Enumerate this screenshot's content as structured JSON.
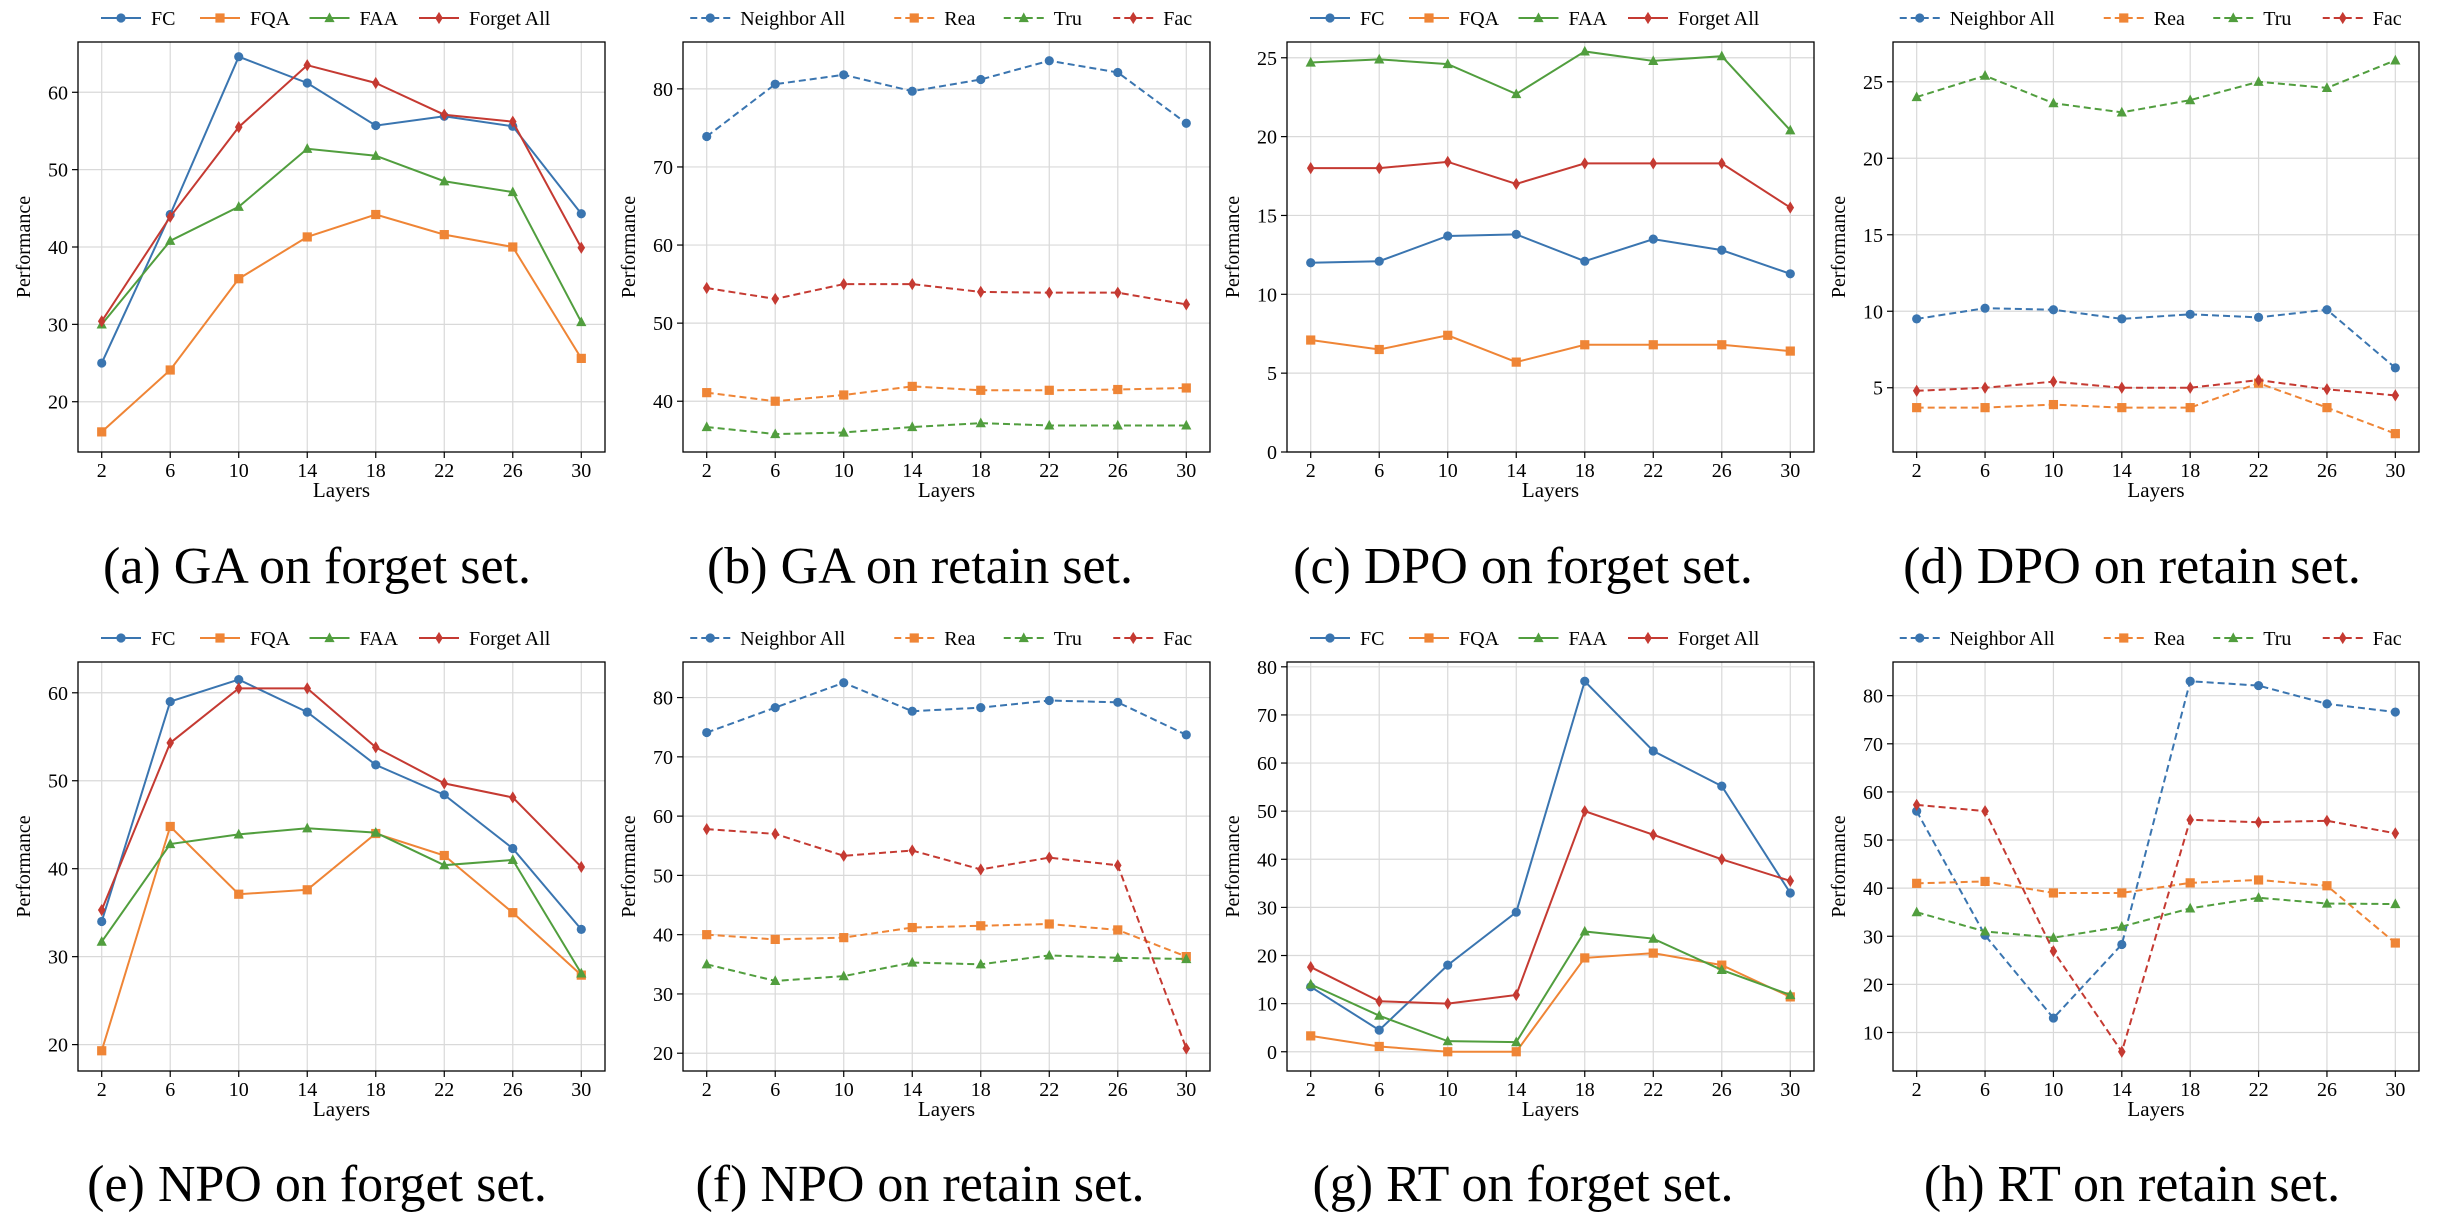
{
  "colors": {
    "blue": "#3a75b0",
    "orange": "#ef8536",
    "green": "#519e3e",
    "red": "#c53a32"
  },
  "chart_data": [
    {
      "type": "line",
      "caption": "(a) GA on forget set.",
      "xlabel": "Layers",
      "ylabel": "Performance",
      "x": [
        2,
        6,
        10,
        14,
        18,
        22,
        26,
        30
      ],
      "ylim": [
        13.5,
        66.5
      ],
      "yticks": [
        20,
        30,
        40,
        50,
        60
      ],
      "grid": true,
      "legend": "top",
      "series": [
        {
          "name": "FC",
          "color": "blue",
          "marker": "circle",
          "dash": false,
          "values": [
            25,
            44.2,
            64.6,
            61.2,
            55.7,
            56.9,
            55.6,
            44.3
          ]
        },
        {
          "name": "FQA",
          "color": "orange",
          "marker": "square",
          "dash": false,
          "values": [
            16.1,
            24.1,
            35.9,
            41.3,
            44.2,
            41.6,
            40,
            25.6
          ]
        },
        {
          "name": "FAA",
          "color": "green",
          "marker": "triangle",
          "dash": false,
          "values": [
            30,
            40.8,
            45.2,
            52.7,
            51.8,
            48.5,
            47.1,
            30.3
          ]
        },
        {
          "name": "Forget All",
          "color": "red",
          "marker": "diamond",
          "dash": false,
          "values": [
            30.4,
            43.9,
            55.5,
            63.5,
            61.2,
            57.1,
            56.2,
            39.9
          ]
        }
      ]
    },
    {
      "type": "line",
      "caption": "(b) GA on retain set.",
      "xlabel": "Layers",
      "ylabel": "Performance",
      "x": [
        2,
        6,
        10,
        14,
        18,
        22,
        26,
        30
      ],
      "ylim": [
        33.5,
        86
      ],
      "yticks": [
        40,
        50,
        60,
        70,
        80
      ],
      "grid": true,
      "legend": "top",
      "series": [
        {
          "name": "Neighbor All",
          "color": "blue",
          "marker": "circle",
          "dash": true,
          "values": [
            73.9,
            80.6,
            81.8,
            79.7,
            81.2,
            83.6,
            82.1,
            75.6
          ]
        },
        {
          "name": "Rea",
          "color": "orange",
          "marker": "square",
          "dash": true,
          "values": [
            41.1,
            40,
            40.8,
            41.9,
            41.4,
            41.4,
            41.5,
            41.7
          ]
        },
        {
          "name": "Tru",
          "color": "green",
          "marker": "triangle",
          "dash": true,
          "values": [
            36.7,
            35.8,
            36,
            36.7,
            37.2,
            36.9,
            36.9,
            36.9
          ]
        },
        {
          "name": "Fac",
          "color": "red",
          "marker": "diamond",
          "dash": true,
          "values": [
            54.5,
            53.1,
            55,
            55,
            54,
            53.9,
            53.9,
            52.4
          ]
        }
      ]
    },
    {
      "type": "line",
      "caption": "(c) DPO on forget set.",
      "xlabel": "Layers",
      "ylabel": "Performance",
      "x": [
        2,
        6,
        10,
        14,
        18,
        22,
        26,
        30
      ],
      "ylim": [
        0,
        26
      ],
      "yticks": [
        0,
        5,
        10,
        15,
        20,
        25
      ],
      "grid": true,
      "legend": "top",
      "series": [
        {
          "name": "FC",
          "color": "blue",
          "marker": "circle",
          "dash": false,
          "values": [
            12,
            12.1,
            13.7,
            13.8,
            12.1,
            13.5,
            12.8,
            11.3
          ]
        },
        {
          "name": "FQA",
          "color": "orange",
          "marker": "square",
          "dash": false,
          "values": [
            7.1,
            6.5,
            7.4,
            5.7,
            6.8,
            6.8,
            6.8,
            6.4
          ]
        },
        {
          "name": "FAA",
          "color": "green",
          "marker": "triangle",
          "dash": false,
          "values": [
            24.7,
            24.9,
            24.6,
            22.7,
            25.4,
            24.8,
            25.1,
            20.4
          ]
        },
        {
          "name": "Forget All",
          "color": "red",
          "marker": "diamond",
          "dash": false,
          "values": [
            18,
            18,
            18.4,
            17,
            18.3,
            18.3,
            18.3,
            15.5
          ]
        }
      ]
    },
    {
      "type": "line",
      "caption": "(d) DPO on retain set.",
      "xlabel": "Layers",
      "ylabel": "Performance",
      "x": [
        2,
        6,
        10,
        14,
        18,
        22,
        26,
        30
      ],
      "ylim": [
        0.8,
        27.6
      ],
      "yticks": [
        5,
        10,
        15,
        20,
        25
      ],
      "grid": true,
      "legend": "top",
      "series": [
        {
          "name": "Neighbor All",
          "color": "blue",
          "marker": "circle",
          "dash": true,
          "values": [
            9.5,
            10.2,
            10.1,
            9.5,
            9.8,
            9.6,
            10.1,
            6.3
          ]
        },
        {
          "name": "Rea",
          "color": "orange",
          "marker": "square",
          "dash": true,
          "values": [
            3.7,
            3.7,
            3.9,
            3.7,
            3.7,
            5.3,
            3.7,
            2
          ]
        },
        {
          "name": "Tru",
          "color": "green",
          "marker": "triangle",
          "dash": true,
          "values": [
            24,
            25.4,
            23.6,
            23,
            23.8,
            25,
            24.6,
            26.4
          ]
        },
        {
          "name": "Fac",
          "color": "red",
          "marker": "diamond",
          "dash": true,
          "values": [
            4.8,
            5,
            5.4,
            5,
            5,
            5.5,
            4.9,
            4.5
          ]
        }
      ]
    },
    {
      "type": "line",
      "caption": "(e) NPO on forget set.",
      "xlabel": "Layers",
      "ylabel": "Performance",
      "x": [
        2,
        6,
        10,
        14,
        18,
        22,
        26,
        30
      ],
      "ylim": [
        17,
        63.5
      ],
      "yticks": [
        20,
        30,
        40,
        50,
        60
      ],
      "grid": true,
      "legend": "top",
      "series": [
        {
          "name": "FC",
          "color": "blue",
          "marker": "circle",
          "dash": false,
          "values": [
            34,
            59,
            61.5,
            57.8,
            51.8,
            48.4,
            42.3,
            33.1
          ]
        },
        {
          "name": "FQA",
          "color": "orange",
          "marker": "square",
          "dash": false,
          "values": [
            19.3,
            44.8,
            37.1,
            37.6,
            44,
            41.5,
            35,
            27.9
          ]
        },
        {
          "name": "FAA",
          "color": "green",
          "marker": "triangle",
          "dash": false,
          "values": [
            31.7,
            42.8,
            43.9,
            44.6,
            44.1,
            40.4,
            41,
            28.1
          ]
        },
        {
          "name": "Forget All",
          "color": "red",
          "marker": "diamond",
          "dash": false,
          "values": [
            35.3,
            54.3,
            60.5,
            60.5,
            53.8,
            49.7,
            48.1,
            40.2
          ]
        }
      ]
    },
    {
      "type": "line",
      "caption": "(f) NPO on retain set.",
      "xlabel": "Layers",
      "ylabel": "Performance",
      "x": [
        2,
        6,
        10,
        14,
        18,
        22,
        26,
        30
      ],
      "ylim": [
        17,
        86
      ],
      "yticks": [
        20,
        30,
        40,
        50,
        60,
        70,
        80
      ],
      "grid": true,
      "legend": "top",
      "series": [
        {
          "name": "Neighbor All",
          "color": "blue",
          "marker": "circle",
          "dash": true,
          "values": [
            74.1,
            78.3,
            82.5,
            77.7,
            78.3,
            79.5,
            79.2,
            73.7
          ]
        },
        {
          "name": "Rea",
          "color": "orange",
          "marker": "square",
          "dash": true,
          "values": [
            40,
            39.2,
            39.5,
            41.2,
            41.5,
            41.8,
            40.8,
            36.3
          ]
        },
        {
          "name": "Tru",
          "color": "green",
          "marker": "triangle",
          "dash": true,
          "values": [
            35,
            32.2,
            33,
            35.3,
            35,
            36.5,
            36.1,
            35.9
          ]
        },
        {
          "name": "Fac",
          "color": "red",
          "marker": "diamond",
          "dash": true,
          "values": [
            57.8,
            57,
            53.3,
            54.2,
            51,
            53,
            51.7,
            20.8
          ]
        }
      ]
    },
    {
      "type": "line",
      "caption": "(g) RT on forget set.",
      "xlabel": "Layers",
      "ylabel": "Performance",
      "x": [
        2,
        6,
        10,
        14,
        18,
        22,
        26,
        30
      ],
      "ylim": [
        -4,
        81
      ],
      "yticks": [
        0,
        10,
        20,
        30,
        40,
        50,
        60,
        70,
        80
      ],
      "grid": true,
      "legend": "top",
      "series": [
        {
          "name": "FC",
          "color": "blue",
          "marker": "circle",
          "dash": false,
          "values": [
            13.5,
            4.5,
            18,
            29,
            77,
            62.5,
            55.2,
            33
          ]
        },
        {
          "name": "FQA",
          "color": "orange",
          "marker": "square",
          "dash": false,
          "values": [
            3.3,
            1.1,
            0,
            0,
            19.5,
            20.5,
            18,
            11.4
          ]
        },
        {
          "name": "FAA",
          "color": "green",
          "marker": "triangle",
          "dash": false,
          "values": [
            14,
            7.5,
            2.2,
            2,
            25,
            23.5,
            17,
            11.8
          ]
        },
        {
          "name": "Forget All",
          "color": "red",
          "marker": "diamond",
          "dash": false,
          "values": [
            17.6,
            10.5,
            10,
            11.8,
            50,
            45.1,
            40,
            35.5
          ]
        }
      ]
    },
    {
      "type": "line",
      "caption": "(h) RT on retain set.",
      "xlabel": "Layers",
      "ylabel": "Performance",
      "x": [
        2,
        6,
        10,
        14,
        18,
        22,
        26,
        30
      ],
      "ylim": [
        2,
        87
      ],
      "yticks": [
        10,
        20,
        30,
        40,
        50,
        60,
        70,
        80
      ],
      "grid": true,
      "legend": "top",
      "series": [
        {
          "name": "Neighbor All",
          "color": "blue",
          "marker": "circle",
          "dash": true,
          "values": [
            56,
            30.2,
            13,
            28.3,
            83,
            82.1,
            78.3,
            76.6
          ]
        },
        {
          "name": "Rea",
          "color": "orange",
          "marker": "square",
          "dash": true,
          "values": [
            41,
            41.4,
            39,
            39,
            41.1,
            41.7,
            40.5,
            28.6
          ]
        },
        {
          "name": "Tru",
          "color": "green",
          "marker": "triangle",
          "dash": true,
          "values": [
            35,
            31,
            29.7,
            32,
            35.8,
            38,
            36.8,
            36.7
          ]
        },
        {
          "name": "Fac",
          "color": "red",
          "marker": "diamond",
          "dash": true,
          "values": [
            57.3,
            56,
            26.9,
            6,
            54.2,
            53.7,
            54,
            51.4
          ]
        }
      ]
    }
  ]
}
